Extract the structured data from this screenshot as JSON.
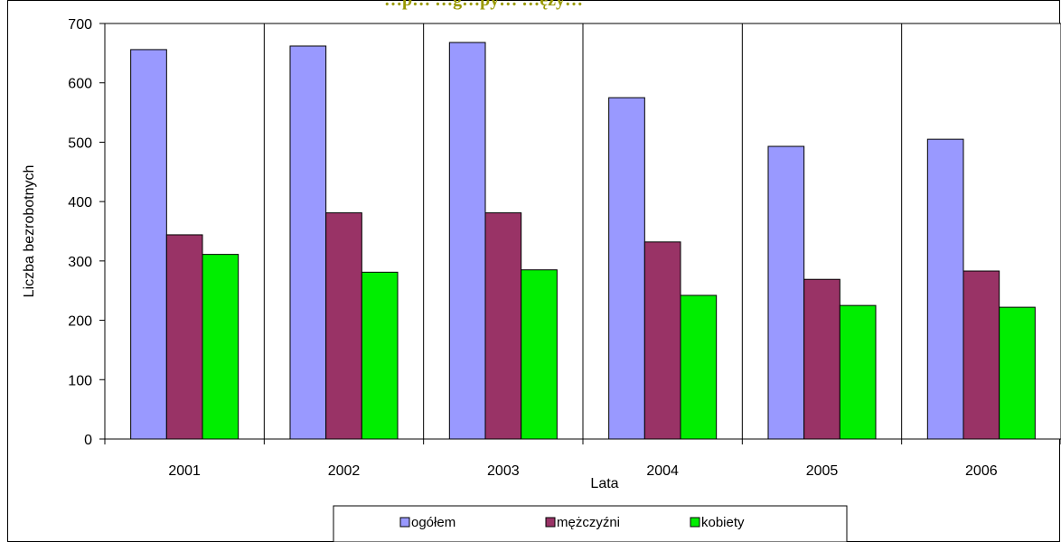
{
  "chart_data": {
    "type": "bar",
    "title": "…p… …g…py… …ęży…",
    "xlabel": "Lata",
    "ylabel": "Liczba bezrobotnych",
    "categories": [
      "2001",
      "2002",
      "2003",
      "2004",
      "2005",
      "2006"
    ],
    "series": [
      {
        "name": "ogółem",
        "color": "#9999ff",
        "values": [
          656,
          662,
          668,
          575,
          493,
          505
        ]
      },
      {
        "name": "mężczyźni",
        "color": "#993366",
        "values": [
          344,
          381,
          381,
          332,
          269,
          283
        ]
      },
      {
        "name": "kobiety",
        "color": "#00ee00",
        "values": [
          311,
          281,
          285,
          242,
          225,
          222
        ]
      }
    ],
    "ylim": [
      0,
      700
    ],
    "yticks": [
      "0",
      "100",
      "200",
      "300",
      "400",
      "500",
      "600",
      "700"
    ],
    "grid": "vertical category separators",
    "legend_position": "bottom",
    "title_color": "#999900"
  }
}
